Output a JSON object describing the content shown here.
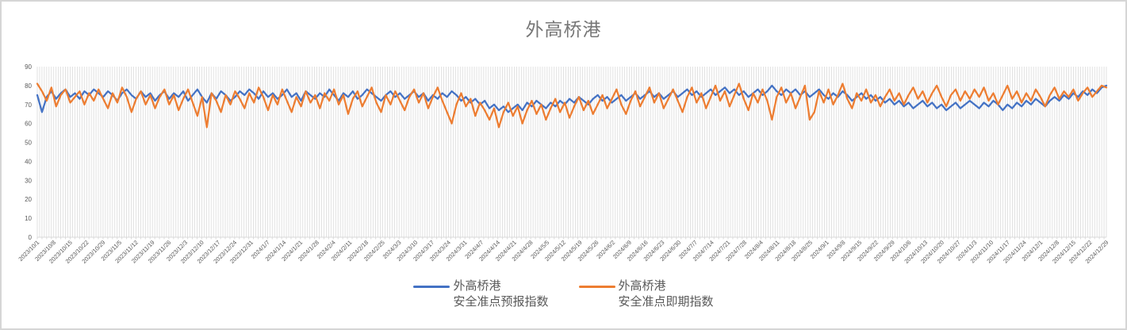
{
  "window": {
    "background": "#ffffff",
    "border_color": "#d6d6d6"
  },
  "chart_data": {
    "type": "line",
    "title": "外高桥港",
    "title_color": "#767676",
    "xlabel": "",
    "ylabel": "",
    "ylim": [
      0,
      90
    ],
    "y_ticks": [
      0,
      10,
      20,
      30,
      40,
      50,
      60,
      70,
      80,
      90
    ],
    "grid": "vertical-per-category",
    "n_category_gridlines": 456,
    "gridline_color": "#d9d9d9",
    "axis_line_color": "#d9d9d9",
    "tick_label_color": "#595959",
    "legend_position": "bottom",
    "x_label_interval": "weekly",
    "x_labels": [
      "2023/10/1",
      "2023/10/8",
      "2023/10/15",
      "2023/10/22",
      "2023/10/29",
      "2023/11/5",
      "2023/11/12",
      "2023/11/19",
      "2023/11/26",
      "2023/12/3",
      "2023/12/10",
      "2023/12/17",
      "2023/12/24",
      "2023/12/31",
      "2024/1/7",
      "2024/1/14",
      "2024/1/21",
      "2024/1/28",
      "2024/2/4",
      "2024/2/11",
      "2024/2/18",
      "2024/2/25",
      "2024/3/3",
      "2024/3/10",
      "2024/3/17",
      "2024/3/24",
      "2024/3/31",
      "2024/4/7",
      "2024/4/14",
      "2024/4/21",
      "2024/4/28",
      "2024/5/5",
      "2024/5/12",
      "2024/5/19",
      "2024/5/26",
      "2024/6/2",
      "2024/6/9",
      "2024/6/16",
      "2024/6/23",
      "2024/6/30",
      "2024/7/7",
      "2024/7/14",
      "2024/7/21",
      "2024/7/28",
      "2024/8/4",
      "2024/8/11",
      "2024/8/18",
      "2024/8/25",
      "2024/9/1",
      "2024/9/8",
      "2024/9/15",
      "2024/9/22",
      "2024/9/29",
      "2024/10/6",
      "2024/10/13",
      "2024/10/20",
      "2024/10/27",
      "2024/11/3",
      "2024/11/10",
      "2024/11/17",
      "2024/11/24",
      "2024/12/1",
      "2024/12/8",
      "2024/12/15",
      "2024/12/22",
      "2024/12/29"
    ],
    "series": [
      {
        "name": "外高桥港 安全准点预报指数",
        "color": "#4472C4",
        "values": [
          75,
          66,
          74,
          77,
          73,
          76,
          78,
          74,
          76,
          73,
          77,
          75,
          78,
          76,
          74,
          77,
          75,
          72,
          76,
          78,
          75,
          73,
          77,
          74,
          76,
          72,
          75,
          77,
          73,
          76,
          74,
          77,
          72,
          75,
          78,
          74,
          71,
          76,
          73,
          77,
          75,
          72,
          74,
          77,
          75,
          78,
          76,
          73,
          77,
          74,
          76,
          73,
          75,
          78,
          74,
          76,
          72,
          77,
          75,
          73,
          76,
          74,
          78,
          75,
          72,
          76,
          74,
          77,
          73,
          75,
          78,
          76,
          74,
          72,
          75,
          77,
          74,
          76,
          73,
          75,
          77,
          74,
          76,
          72,
          75,
          73,
          76,
          74,
          77,
          75,
          72,
          74,
          71,
          73,
          70,
          72,
          68,
          70,
          67,
          69,
          66,
          68,
          70,
          67,
          71,
          69,
          72,
          70,
          68,
          71,
          69,
          72,
          70,
          73,
          71,
          74,
          72,
          70,
          73,
          75,
          72,
          74,
          71,
          73,
          75,
          72,
          74,
          76,
          73,
          75,
          77,
          74,
          76,
          73,
          75,
          77,
          74,
          76,
          78,
          75,
          77,
          74,
          76,
          78,
          75,
          77,
          79,
          76,
          78,
          75,
          77,
          74,
          76,
          78,
          75,
          77,
          80,
          77,
          75,
          78,
          76,
          78,
          75,
          77,
          74,
          76,
          78,
          75,
          73,
          76,
          74,
          77,
          75,
          72,
          74,
          76,
          73,
          75,
          72,
          74,
          71,
          73,
          70,
          72,
          69,
          71,
          68,
          70,
          72,
          69,
          71,
          68,
          70,
          67,
          69,
          71,
          68,
          70,
          72,
          70,
          68,
          71,
          69,
          72,
          70,
          67,
          70,
          68,
          71,
          69,
          72,
          70,
          73,
          71,
          69,
          72,
          74,
          72,
          75,
          73,
          76,
          74,
          77,
          75,
          78,
          76,
          79,
          80
        ]
      },
      {
        "name": "外高桥港 安全准点即期指数",
        "color": "#ED7D31",
        "values": [
          81,
          77,
          72,
          79,
          69,
          75,
          78,
          71,
          74,
          77,
          70,
          76,
          72,
          78,
          73,
          68,
          76,
          71,
          79,
          74,
          66,
          73,
          77,
          70,
          75,
          68,
          74,
          78,
          70,
          75,
          67,
          73,
          78,
          71,
          64,
          74,
          58,
          76,
          72,
          66,
          75,
          70,
          77,
          73,
          68,
          76,
          71,
          79,
          74,
          67,
          75,
          70,
          78,
          72,
          66,
          74,
          69,
          77,
          71,
          75,
          68,
          76,
          72,
          78,
          70,
          75,
          65,
          73,
          77,
          69,
          74,
          79,
          71,
          66,
          75,
          70,
          77,
          72,
          67,
          74,
          78,
          71,
          76,
          68,
          74,
          79,
          72,
          66,
          60,
          70,
          76,
          69,
          73,
          64,
          71,
          67,
          62,
          68,
          58,
          66,
          71,
          64,
          69,
          60,
          67,
          72,
          65,
          70,
          62,
          68,
          73,
          66,
          71,
          63,
          69,
          74,
          67,
          72,
          65,
          70,
          75,
          68,
          73,
          78,
          70,
          65,
          72,
          77,
          69,
          74,
          79,
          71,
          76,
          68,
          73,
          78,
          72,
          66,
          74,
          79,
          71,
          76,
          68,
          74,
          80,
          72,
          77,
          69,
          75,
          81,
          73,
          67,
          76,
          71,
          78,
          72,
          62,
          74,
          79,
          71,
          76,
          68,
          74,
          80,
          62,
          66,
          77,
          71,
          78,
          70,
          75,
          81,
          73,
          68,
          76,
          72,
          78,
          71,
          75,
          69,
          74,
          78,
          72,
          76,
          70,
          75,
          79,
          73,
          77,
          71,
          76,
          80,
          74,
          69,
          75,
          78,
          72,
          77,
          73,
          78,
          74,
          79,
          72,
          76,
          70,
          75,
          80,
          73,
          77,
          71,
          76,
          72,
          78,
          74,
          69,
          75,
          79,
          73,
          77,
          74,
          78,
          72,
          76,
          79,
          74,
          77,
          80,
          79
        ]
      }
    ]
  },
  "legend": {
    "items": [
      {
        "line1": "外高桥港",
        "line2": "安全准点预报指数",
        "color": "#4472C4"
      },
      {
        "line1": "外高桥港",
        "line2": "安全准点即期指数",
        "color": "#ED7D31"
      }
    ]
  }
}
